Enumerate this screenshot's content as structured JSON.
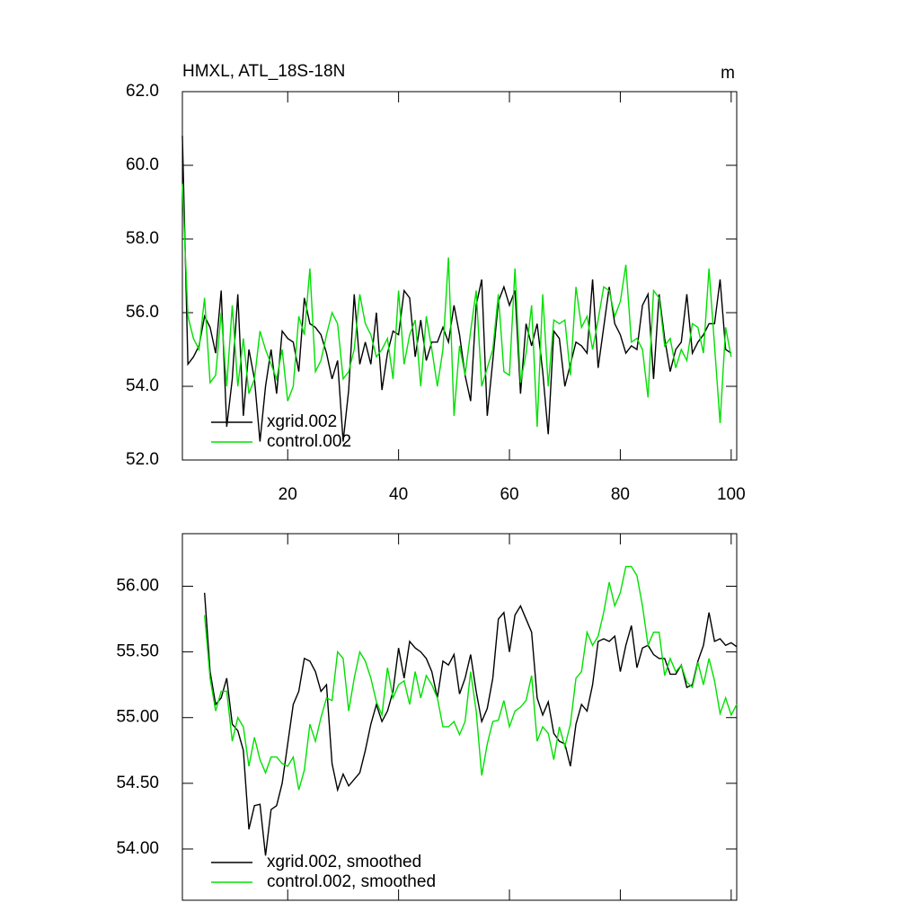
{
  "chart_data": [
    {
      "type": "line",
      "title": "HMXL, ATL_18S-18N",
      "units": "m",
      "x": [
        1,
        2,
        3,
        4,
        5,
        6,
        7,
        8,
        9,
        10,
        11,
        12,
        13,
        14,
        15,
        16,
        17,
        18,
        19,
        20,
        21,
        22,
        23,
        24,
        25,
        26,
        27,
        28,
        29,
        30,
        31,
        32,
        33,
        34,
        35,
        36,
        37,
        38,
        39,
        40,
        41,
        42,
        43,
        44,
        45,
        46,
        47,
        48,
        49,
        50,
        51,
        52,
        53,
        54,
        55,
        56,
        57,
        58,
        59,
        60,
        61,
        62,
        63,
        64,
        65,
        66,
        67,
        68,
        69,
        70,
        71,
        72,
        73,
        74,
        75,
        76,
        77,
        78,
        79,
        80,
        81,
        82,
        83,
        84,
        85,
        86,
        87,
        88,
        89,
        90,
        91,
        92,
        93,
        94,
        95,
        96,
        97,
        98,
        99,
        100
      ],
      "series": [
        {
          "name": "xgrid.002",
          "color": "#000000",
          "values": [
            60.8,
            54.6,
            54.8,
            55.1,
            55.9,
            55.6,
            54.9,
            56.6,
            52.9,
            54.2,
            56.5,
            53.2,
            55.0,
            54.2,
            52.5,
            54.0,
            55.0,
            53.8,
            55.5,
            55.3,
            55.2,
            54.4,
            56.4,
            55.7,
            55.6,
            55.4,
            54.9,
            54.2,
            54.7,
            52.5,
            53.9,
            56.5,
            54.6,
            55.2,
            54.6,
            56.0,
            53.9,
            54.9,
            55.5,
            55.4,
            56.6,
            56.4,
            54.8,
            55.8,
            54.7,
            55.2,
            55.2,
            55.6,
            55.2,
            56.2,
            55.4,
            54.3,
            53.6,
            56.2,
            56.9,
            53.2,
            54.7,
            56.3,
            56.7,
            56.2,
            56.6,
            53.8,
            55.7,
            55.1,
            55.7,
            54.4,
            52.7,
            55.5,
            55.3,
            54.0,
            54.6,
            55.2,
            55.1,
            54.9,
            56.9,
            54.5,
            55.6,
            56.7,
            55.7,
            55.4,
            54.9,
            55.1,
            55.0,
            56.2,
            56.5,
            54.2,
            56.5,
            55.3,
            54.4,
            55.0,
            55.2,
            56.5,
            54.9,
            55.2,
            55.4,
            55.7,
            55.7,
            56.9,
            55.0,
            54.9
          ]
        },
        {
          "name": "control.002",
          "color": "#00e000",
          "values": [
            59.5,
            55.9,
            55.3,
            55.0,
            56.4,
            54.1,
            54.3,
            56.0,
            54.0,
            56.2,
            54.0,
            55.3,
            53.8,
            54.2,
            55.5,
            55.0,
            54.6,
            54.2,
            55.0,
            53.6,
            54.0,
            55.9,
            55.4,
            57.2,
            54.4,
            54.7,
            55.4,
            56.0,
            55.7,
            54.2,
            54.4,
            55.0,
            56.5,
            55.7,
            55.4,
            54.8,
            55.0,
            55.3,
            54.2,
            56.6,
            54.6,
            55.4,
            55.8,
            54.0,
            55.9,
            55.0,
            54.0,
            55.0,
            57.5,
            53.2,
            55.1,
            54.3,
            55.5,
            56.6,
            54.0,
            54.5,
            55.0,
            56.5,
            54.4,
            54.3,
            57.2,
            54.1,
            54.9,
            56.2,
            52.9,
            56.5,
            54.0,
            55.8,
            55.7,
            55.8,
            54.3,
            56.7,
            55.6,
            55.9,
            55.0,
            55.8,
            56.7,
            56.6,
            55.9,
            56.3,
            57.3,
            55.2,
            55.3,
            55.0,
            53.7,
            56.6,
            56.4,
            55.1,
            55.3,
            54.5,
            55.0,
            54.7,
            55.7,
            55.6,
            54.9,
            57.2,
            55.1,
            53.0,
            55.6,
            54.8
          ]
        }
      ],
      "xlim": [
        1,
        101
      ],
      "xticks": [
        20,
        40,
        60,
        80,
        100
      ],
      "xtick_labels": true,
      "ylim": [
        52,
        62
      ],
      "yticks": [
        {
          "value": 52,
          "label": "52.0"
        },
        {
          "value": 54,
          "label": "54.0"
        },
        {
          "value": 56,
          "label": "56.0"
        },
        {
          "value": 58,
          "label": "58.0"
        },
        {
          "value": 60,
          "label": "60.0"
        },
        {
          "value": 62,
          "label": "62.0"
        }
      ],
      "legend": "lower left"
    },
    {
      "type": "line",
      "x": [
        5,
        6,
        7,
        8,
        9,
        10,
        11,
        12,
        13,
        14,
        15,
        16,
        17,
        18,
        19,
        20,
        21,
        22,
        23,
        24,
        25,
        26,
        27,
        28,
        29,
        30,
        31,
        32,
        33,
        34,
        35,
        36,
        37,
        38,
        39,
        40,
        41,
        42,
        43,
        44,
        45,
        46,
        47,
        48,
        49,
        50,
        51,
        52,
        53,
        54,
        55,
        56,
        57,
        58,
        59,
        60,
        61,
        62,
        63,
        64,
        65,
        66,
        67,
        68,
        69,
        70,
        71,
        72,
        73,
        74,
        75,
        76,
        77,
        78,
        79,
        80,
        81,
        82,
        83,
        84,
        85,
        86,
        87,
        88,
        89,
        90,
        91,
        92,
        93,
        94,
        95,
        96,
        97,
        98,
        99,
        100,
        101
      ],
      "series": [
        {
          "name": "xgrid.002, smoothed",
          "color": "#000000",
          "values": [
            55.95,
            55.35,
            55.1,
            55.15,
            55.3,
            54.95,
            54.9,
            54.75,
            54.15,
            54.33,
            54.34,
            53.95,
            54.3,
            54.33,
            54.5,
            54.8,
            55.1,
            55.2,
            55.45,
            55.43,
            55.35,
            55.2,
            55.25,
            54.65,
            54.45,
            54.57,
            54.48,
            54.53,
            54.58,
            54.75,
            54.95,
            55.1,
            54.97,
            55.05,
            55.2,
            55.53,
            55.3,
            55.58,
            55.53,
            55.5,
            55.45,
            55.35,
            55.15,
            55.43,
            55.4,
            55.48,
            55.18,
            55.3,
            55.48,
            55.2,
            54.97,
            55.07,
            55.3,
            55.75,
            55.8,
            55.5,
            55.78,
            55.85,
            55.75,
            55.65,
            55.15,
            55.02,
            55.12,
            54.88,
            54.82,
            54.8,
            54.63,
            54.95,
            55.1,
            55.05,
            55.25,
            55.58,
            55.6,
            55.58,
            55.62,
            55.35,
            55.55,
            55.7,
            55.38,
            55.53,
            55.55,
            55.48,
            55.45,
            55.45,
            55.33,
            55.33,
            55.4,
            55.23,
            55.25,
            55.43,
            55.55,
            55.8,
            55.58,
            55.6,
            55.55,
            55.57,
            55.54
          ]
        },
        {
          "name": "control.002, smoothed",
          "color": "#00e000",
          "values": [
            55.78,
            55.3,
            55.05,
            55.2,
            55.2,
            54.82,
            55.0,
            54.93,
            54.63,
            54.85,
            54.68,
            54.58,
            54.7,
            54.7,
            54.65,
            54.63,
            54.7,
            54.45,
            54.6,
            54.95,
            54.82,
            55.0,
            55.15,
            55.13,
            55.5,
            55.45,
            55.05,
            55.3,
            55.5,
            55.43,
            55.3,
            55.12,
            55.02,
            55.38,
            55.15,
            55.25,
            55.28,
            55.1,
            55.35,
            55.15,
            55.32,
            55.25,
            55.15,
            54.93,
            54.93,
            54.97,
            54.87,
            54.97,
            55.35,
            55.05,
            54.56,
            54.8,
            54.97,
            54.98,
            55.13,
            54.93,
            55.05,
            55.08,
            55.13,
            55.32,
            54.82,
            54.93,
            54.88,
            54.68,
            54.93,
            54.78,
            54.95,
            55.3,
            55.35,
            55.65,
            55.55,
            55.62,
            55.8,
            56.03,
            55.85,
            55.95,
            56.15,
            56.15,
            56.08,
            55.85,
            55.55,
            55.65,
            55.65,
            55.32,
            55.45,
            55.35,
            55.4,
            55.27,
            55.23,
            55.42,
            55.25,
            55.45,
            55.28,
            55.03,
            55.15,
            55.02,
            55.1
          ]
        }
      ],
      "xlim": [
        1,
        101
      ],
      "xticks": [
        20,
        40,
        60,
        80,
        100
      ],
      "xtick_labels": false,
      "ylim": [
        53.61,
        56.4
      ],
      "yticks": [
        {
          "value": 54,
          "label": "54.00"
        },
        {
          "value": 54.5,
          "label": "54.50"
        },
        {
          "value": 55,
          "label": "55.00"
        },
        {
          "value": 55.5,
          "label": "55.50"
        },
        {
          "value": 56,
          "label": "56.00"
        }
      ],
      "legend": "lower left"
    }
  ]
}
